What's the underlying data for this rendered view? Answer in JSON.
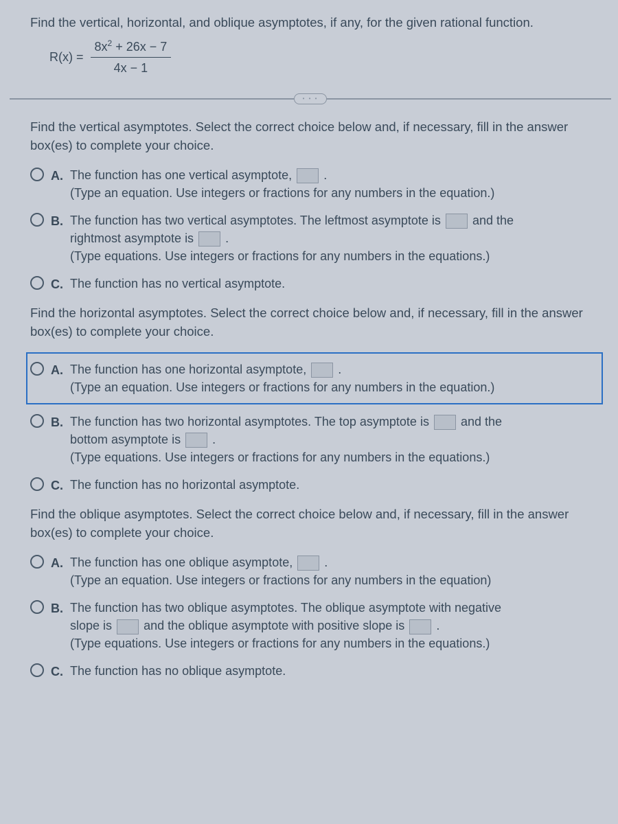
{
  "colors": {
    "background": "#c8cdd6",
    "text": "#3a4a5a",
    "divider": "#8a94a2",
    "selected_border": "#2a6fc4",
    "radio_border": "#4a5a6a",
    "blank_bg": "#b8bfc9"
  },
  "intro": "Find the vertical, horizontal, and oblique asymptotes, if any, for the given rational function.",
  "formula": {
    "lhs": "R(x) =",
    "numerator_pre": "8x",
    "numerator_post": " + 26x − 7",
    "denominator": "4x − 1"
  },
  "sections": {
    "vertical": {
      "prompt": "Find the vertical asymptotes. Select the correct choice below and, if necessary, fill in the answer box(es) to complete your choice.",
      "a_line1": "The function has one vertical asymptote,",
      "a_line2": "(Type an equation. Use integers or fractions for any numbers in the equation.)",
      "b_line1a": "The function has two vertical asymptotes. The leftmost asymptote is",
      "b_line1b": "and the",
      "b_line2a": "rightmost asymptote is",
      "b_line3": "(Type equations. Use integers or fractions for any numbers in the equations.)",
      "c_line1": "The function has no vertical asymptote."
    },
    "horizontal": {
      "prompt": "Find the horizontal asymptotes. Select the correct choice below and, if necessary, fill in the answer box(es) to complete your choice.",
      "a_line1": "The function has one horizontal asymptote,",
      "a_line2": "(Type an equation. Use integers or fractions for any numbers in the equation.)",
      "b_line1a": "The function has two horizontal asymptotes. The top asymptote is",
      "b_line1b": "and the",
      "b_line2a": "bottom asymptote is",
      "b_line3": "(Type equations. Use integers or fractions for any numbers in the equations.)",
      "c_line1": "The function has no horizontal asymptote."
    },
    "oblique": {
      "prompt": "Find the oblique asymptotes. Select the correct choice below and, if necessary, fill in the answer box(es) to complete your choice.",
      "a_line1": "The function has one oblique asymptote,",
      "a_line2": "(Type an equation. Use integers or fractions for any numbers in the equation)",
      "b_line1a": "The function has two oblique asymptotes. The oblique asymptote with negative",
      "b_line2a": "slope is",
      "b_line2b": "and the oblique asymptote with positive slope is",
      "b_line3": "(Type equations. Use integers or fractions for any numbers in the equations.)",
      "c_line1": "The function has no oblique asymptote."
    }
  },
  "labels": {
    "A": "A.",
    "B": "B.",
    "C": "C.",
    "dots": "• • •",
    "period": "."
  }
}
